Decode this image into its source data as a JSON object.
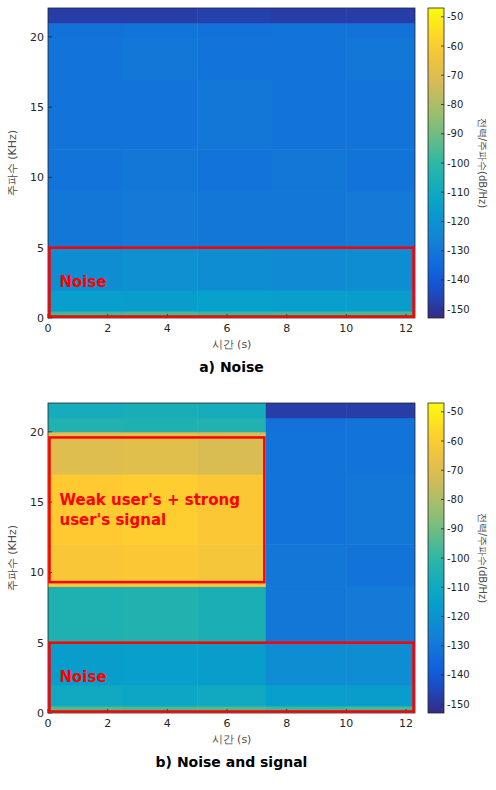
{
  "chart_data": [
    {
      "type": "heatmap",
      "title": "a) Noise",
      "x_label": "시간 (s)",
      "y_label": "주파수 (KHz)",
      "xlim": [
        0,
        12.3
      ],
      "ylim": [
        0,
        22.05
      ],
      "xticks": [
        0,
        2,
        4,
        6,
        8,
        10,
        12
      ],
      "yticks": [
        0,
        5,
        10,
        15,
        20
      ],
      "x_edges": [
        0,
        2.5,
        5,
        7.5,
        10,
        12.3
      ],
      "y_edges": [
        0,
        0.5,
        2,
        5,
        9,
        12,
        17,
        20,
        21,
        22.05
      ],
      "cells": [
        [
          -98,
          -97,
          -99,
          -98,
          -97
        ],
        [
          -115,
          -116,
          -114,
          -115,
          -116
        ],
        [
          -122,
          -121,
          -122,
          -123,
          -122
        ],
        [
          -130,
          -129,
          -130,
          -130,
          -129
        ],
        [
          -131,
          -130,
          -131,
          -130,
          -131
        ],
        [
          -131,
          -131,
          -130,
          -131,
          -131
        ],
        [
          -131,
          -130,
          -131,
          -131,
          -130
        ],
        [
          -132,
          -131,
          -132,
          -131,
          -132
        ],
        [
          -148,
          -148,
          -147,
          -148,
          -148
        ]
      ],
      "colorbar": {
        "label": "전력/주파수(dB/Hz)",
        "range": [
          -153,
          -47
        ],
        "ticks": [
          -50,
          -60,
          -70,
          -80,
          -90,
          -100,
          -110,
          -120,
          -130,
          -140,
          -150
        ]
      },
      "annotations": [
        {
          "text": "Noise",
          "x": [
            0,
            12.3
          ],
          "y": [
            0,
            5
          ]
        }
      ]
    },
    {
      "type": "heatmap",
      "title": "b) Noise and signal",
      "x_label": "시간 (s)",
      "y_label": "주파수 (KHz)",
      "xlim": [
        0,
        12.3
      ],
      "ylim": [
        0,
        22.05
      ],
      "xticks": [
        0,
        2,
        4,
        6,
        8,
        10,
        12
      ],
      "yticks": [
        0,
        5,
        10,
        15,
        20
      ],
      "x_edges": [
        0,
        2.5,
        5,
        7.3,
        10,
        12.3
      ],
      "y_edges": [
        0,
        0.5,
        2,
        5,
        9,
        12,
        17,
        20,
        21,
        22.05
      ],
      "cells": [
        [
          -95,
          -96,
          -95,
          -98,
          -97
        ],
        [
          -110,
          -111,
          -110,
          -115,
          -116
        ],
        [
          -116,
          -115,
          -116,
          -122,
          -122
        ],
        [
          -105,
          -104,
          -106,
          -130,
          -129
        ],
        [
          -62,
          -61,
          -63,
          -130,
          -131
        ],
        [
          -60,
          -59,
          -61,
          -131,
          -130
        ],
        [
          -70,
          -69,
          -71,
          -131,
          -131
        ],
        [
          -104,
          -105,
          -104,
          -132,
          -131
        ],
        [
          -108,
          -107,
          -108,
          -148,
          -148
        ]
      ],
      "colorbar": {
        "label": "전력/주파수(dB/Hz)",
        "range": [
          -153,
          -47
        ],
        "ticks": [
          -50,
          -60,
          -70,
          -80,
          -90,
          -100,
          -110,
          -120,
          -130,
          -140,
          -150
        ]
      },
      "annotations": [
        {
          "text": "Weak user's + strong user's signal",
          "x": [
            0,
            7.3
          ],
          "y": [
            9.2,
            19.6
          ]
        },
        {
          "text": "Noise",
          "x": [
            0,
            12.3
          ],
          "y": [
            0,
            5
          ]
        }
      ]
    }
  ]
}
